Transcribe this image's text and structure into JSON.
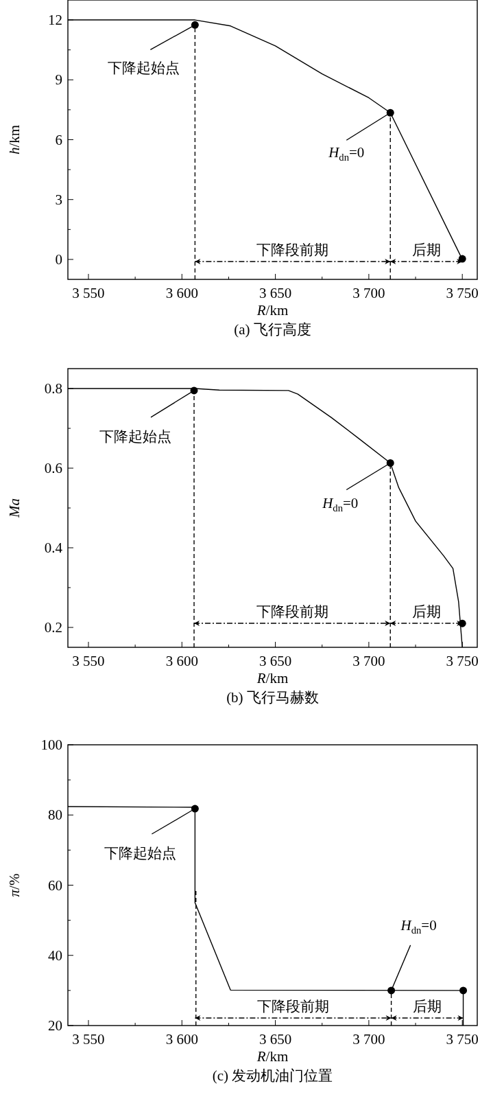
{
  "chart_data": [
    {
      "type": "line",
      "title": "(a) 飞行高度",
      "xlabel": "R/km",
      "ylabel": "h/km",
      "xlim": [
        3539,
        3758
      ],
      "ylim": [
        -1,
        13
      ],
      "xticks": [
        {
          "value": 3550,
          "label": "3 550"
        },
        {
          "value": 3575,
          "label": null
        },
        {
          "value": 3600,
          "label": "3 600"
        },
        {
          "value": 3625,
          "label": null
        },
        {
          "value": 3650,
          "label": "3 650"
        },
        {
          "value": 3675,
          "label": null
        },
        {
          "value": 3700,
          "label": "3 700"
        },
        {
          "value": 3725,
          "label": null
        },
        {
          "value": 3750,
          "label": "3 750"
        }
      ],
      "yticks": [
        0,
        {
          "value": 1.5,
          "label": null
        },
        3,
        {
          "value": 4.5,
          "label": null
        },
        6,
        {
          "value": 7.5,
          "label": null
        },
        9,
        {
          "value": 10.5,
          "label": null
        },
        12
      ],
      "series": [
        {
          "color": "#000000",
          "line_style": "solid",
          "x": [
            3539,
            3607,
            3626,
            3650,
            3675,
            3700,
            3711.5,
            3750
          ],
          "values": [
            12,
            12,
            11.7,
            10.7,
            9.3,
            8.1,
            7.35,
            0
          ]
        },
        {
          "type": "scatter",
          "color": "#000000",
          "marker": "circle",
          "x": [
            3607,
            3711.5,
            3750
          ],
          "values": [
            11.75,
            7.35,
            0.03
          ]
        },
        {
          "color": "#000000",
          "line_style": "dashed",
          "x": [
            3607,
            3607
          ],
          "values": [
            -1,
            11.75
          ]
        },
        {
          "color": "#000000",
          "line_style": "dashed",
          "x": [
            3711.5,
            3711.5
          ],
          "values": [
            -1,
            7.35
          ]
        }
      ],
      "annotations": [
        {
          "text": "下降起始点",
          "x": 3607,
          "y": 11.75
        },
        {
          "text": "H$_{dn}$=0",
          "x": 3711.5,
          "y": 7.35
        },
        "下降段前期",
        "后期"
      ]
    },
    {
      "type": "line",
      "title": "(b) 飞行马赫数",
      "xlabel": "R/km",
      "ylabel": "Ma",
      "xlim": [
        3539,
        3758
      ],
      "ylim": [
        0.15,
        0.85
      ],
      "xticks": [
        {
          "value": 3550,
          "label": "3 550"
        },
        {
          "value": 3575,
          "label": null
        },
        {
          "value": 3600,
          "label": "3 600"
        },
        {
          "value": 3625,
          "label": null
        },
        {
          "value": 3650,
          "label": "3 650"
        },
        {
          "value": 3675,
          "label": null
        },
        {
          "value": 3700,
          "label": "3 700"
        },
        {
          "value": 3725,
          "label": null
        },
        {
          "value": 3750,
          "label": "3 750"
        }
      ],
      "yticks": [
        0.2,
        {
          "value": 0.3,
          "label": null
        },
        0.4,
        {
          "value": 0.5,
          "label": null
        },
        0.6,
        {
          "value": 0.7,
          "label": null
        },
        0.8
      ],
      "series": [
        {
          "color": "#000000",
          "line_style": "solid",
          "x": [
            3539,
            3607,
            3620,
            3657,
            3662,
            3680,
            3695,
            3711.5,
            3716,
            3725,
            3740,
            3745,
            3748,
            3750
          ],
          "values": [
            0.8,
            0.8,
            0.796,
            0.795,
            0.786,
            0.727,
            0.673,
            0.613,
            0.551,
            0.467,
            0.38,
            0.348,
            0.265,
            0.15
          ]
        },
        {
          "type": "scatter",
          "color": "#000000",
          "marker": "circle",
          "x": [
            3606.5,
            3711.5,
            3750
          ],
          "values": [
            0.795,
            0.613,
            0.21
          ]
        },
        {
          "color": "#000000",
          "line_style": "dashed",
          "x": [
            3606.5,
            3606.5
          ],
          "values": [
            0.15,
            0.795
          ]
        },
        {
          "color": "#000000",
          "line_style": "dashed",
          "x": [
            3711.5,
            3711.5
          ],
          "values": [
            0.15,
            0.613
          ]
        }
      ],
      "annotations": [
        {
          "text": "下降起始点",
          "x": 3606.5,
          "y": 0.795
        },
        {
          "text": "H$_{dn}$=0",
          "x": 3711.5,
          "y": 0.613
        },
        "下降段前期",
        "后期"
      ]
    },
    {
      "type": "line",
      "title": "(c) 发动机油门位置",
      "xlabel": "R/km",
      "ylabel": "π/%",
      "xlim": [
        3539,
        3758
      ],
      "ylim": [
        20,
        100
      ],
      "xticks": [
        {
          "value": 3550,
          "label": "3 550"
        },
        {
          "value": 3575,
          "label": null
        },
        {
          "value": 3600,
          "label": "3 600"
        },
        {
          "value": 3625,
          "label": null
        },
        {
          "value": 3650,
          "label": "3 650"
        },
        {
          "value": 3675,
          "label": null
        },
        {
          "value": 3700,
          "label": "3 700"
        },
        {
          "value": 3725,
          "label": null
        },
        {
          "value": 3750,
          "label": "3 750"
        }
      ],
      "yticks": [
        20,
        {
          "value": 30,
          "label": null
        },
        40,
        {
          "value": 50,
          "label": null
        },
        60,
        {
          "value": 70,
          "label": null
        },
        80,
        {
          "value": 90,
          "label": null
        },
        100
      ],
      "series": [
        {
          "color": "#000000",
          "line_style": "solid",
          "x": [
            3539,
            3607,
            3607,
            3626,
            3750
          ],
          "values": [
            82.4,
            82.2,
            55,
            30.1,
            30
          ]
        },
        {
          "type": "scatter",
          "color": "#000000",
          "marker": "circle",
          "x": [
            3607,
            3712,
            3750.5
          ],
          "values": [
            81.8,
            30,
            30
          ]
        },
        {
          "color": "#000000",
          "line_style": "dashed",
          "x": [
            3607.5,
            3607.5
          ],
          "values": [
            20,
            59
          ]
        },
        {
          "color": "#000000",
          "line_style": "dashed",
          "x": [
            3712,
            3712
          ],
          "values": [
            20,
            30
          ]
        },
        {
          "color": "#000000",
          "line_style": "solid",
          "x": [
            3750.5,
            3750.5
          ],
          "values": [
            20,
            30
          ]
        }
      ],
      "annotations": [
        {
          "text": "下降起始点",
          "x": 3607,
          "y": 81.8
        },
        {
          "text": "H$_{dn}$=0",
          "x": 3712,
          "y": 30
        },
        "下降段前期",
        "后期"
      ]
    }
  ]
}
